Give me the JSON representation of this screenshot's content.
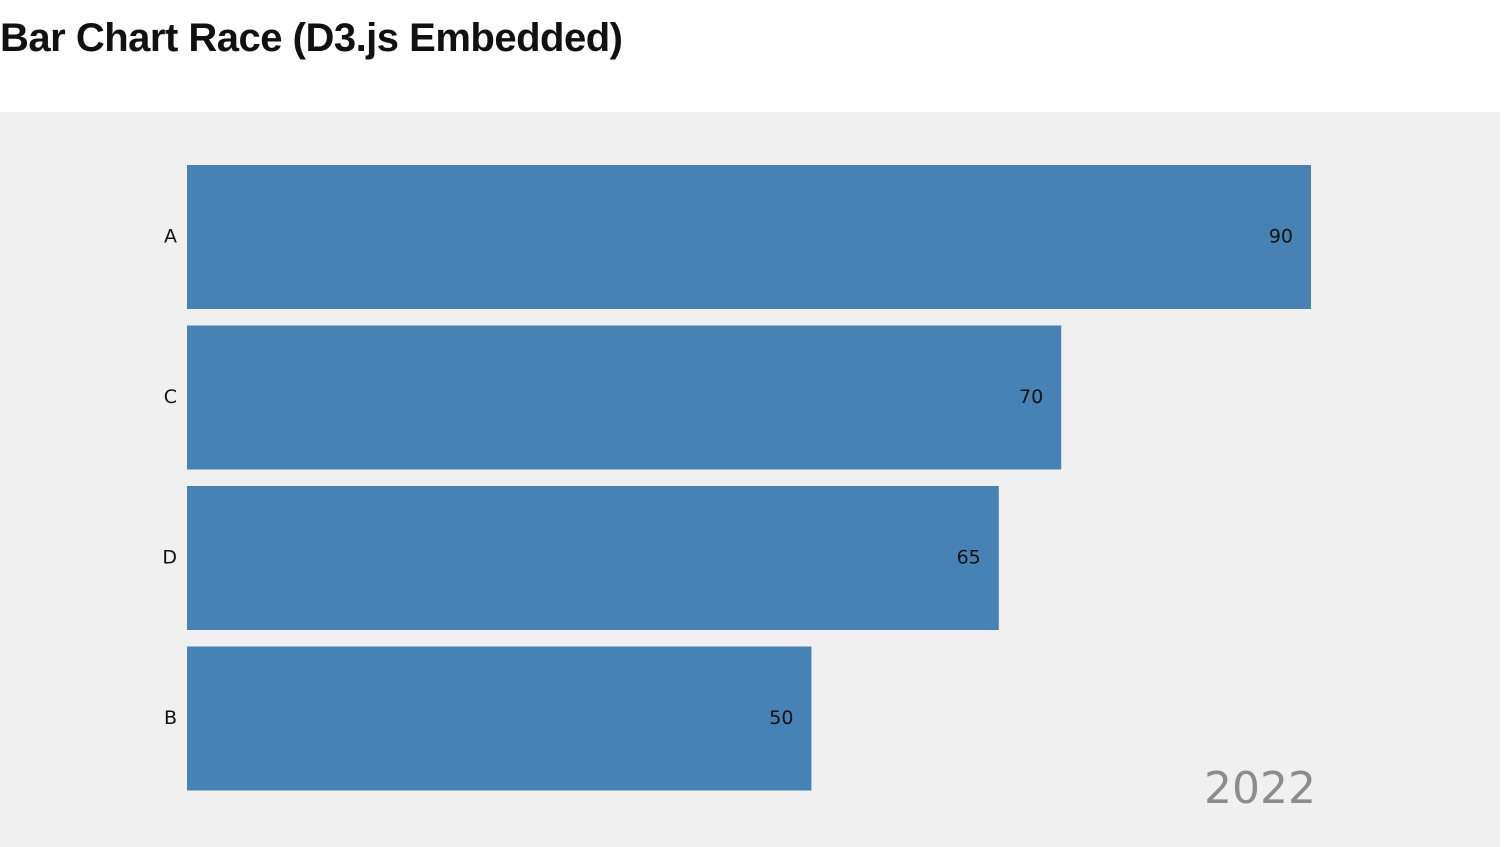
{
  "chart_data": {
    "type": "bar",
    "orientation": "horizontal",
    "title": "Bar Chart Race (D3.js Embedded)",
    "year": "2022",
    "categories": [
      "A",
      "C",
      "D",
      "B"
    ],
    "values": [
      90,
      70,
      65,
      50
    ],
    "color": "#4682b4"
  }
}
